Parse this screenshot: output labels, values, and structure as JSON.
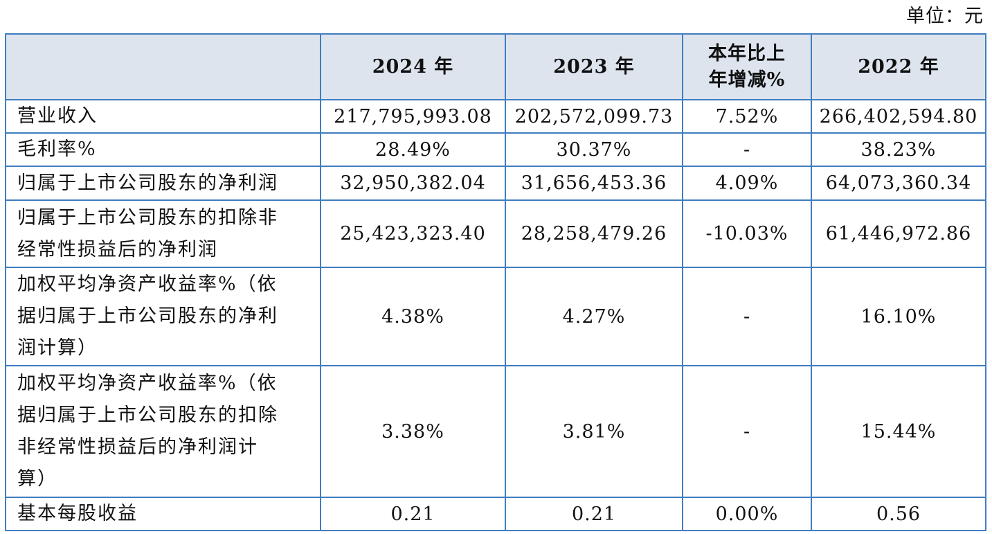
{
  "unit": "单位：元",
  "table": {
    "headers": [
      "",
      "2024 年",
      "2023 年",
      "本年比上\n年增减%",
      "2022 年"
    ],
    "rows": [
      {
        "label": "营业收入",
        "values": [
          "217,795,993.08",
          "202,572,099.73",
          "7.52%",
          "266,402,594.80"
        ]
      },
      {
        "label": "毛利率%",
        "values": [
          "28.49%",
          "30.37%",
          "-",
          "38.23%"
        ]
      },
      {
        "label": "归属于上市公司股东的净利润",
        "values": [
          "32,950,382.04",
          "31,656,453.36",
          "4.09%",
          "64,073,360.34"
        ]
      },
      {
        "label": "归属于上市公司股东的扣除非\n经常性损益后的净利润",
        "values": [
          "25,423,323.40",
          "28,258,479.26",
          "-10.03%",
          "61,446,972.86"
        ]
      },
      {
        "label": "加权平均净资产收益率%（依\n据归属于上市公司股东的净利\n润计算）",
        "values": [
          "4.38%",
          "4.27%",
          "-",
          "16.10%"
        ]
      },
      {
        "label": "加权平均净资产收益率%（依\n据归属于上市公司股东的扣除\n非经常性损益后的净利润计\n算）",
        "values": [
          "3.38%",
          "3.81%",
          "-",
          "15.44%"
        ]
      },
      {
        "label": "基本每股收益",
        "values": [
          "0.21",
          "0.21",
          "0.00%",
          "0.56"
        ]
      }
    ]
  }
}
